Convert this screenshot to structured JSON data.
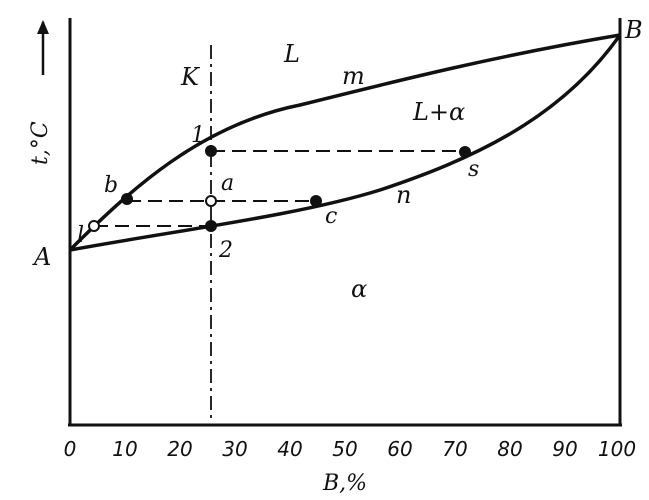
{
  "diagram": {
    "y_axis_label": "t,°C",
    "x_axis_label": "B,%",
    "x_ticks": [
      "0",
      "10",
      "20",
      "30",
      "40",
      "50",
      "60",
      "70",
      "80",
      "90",
      "100"
    ],
    "endpoint_left": "A",
    "endpoint_right": "B",
    "vertical_line_label": "K",
    "region_liquid": "L",
    "region_two_phase": "L+α",
    "region_solid": "α",
    "liquidus_label": "m",
    "solidus_label": "n",
    "point_labels": {
      "p1": "1",
      "p2": "2",
      "a": "a",
      "b": "b",
      "c": "c",
      "s": "s",
      "l": "l"
    }
  }
}
